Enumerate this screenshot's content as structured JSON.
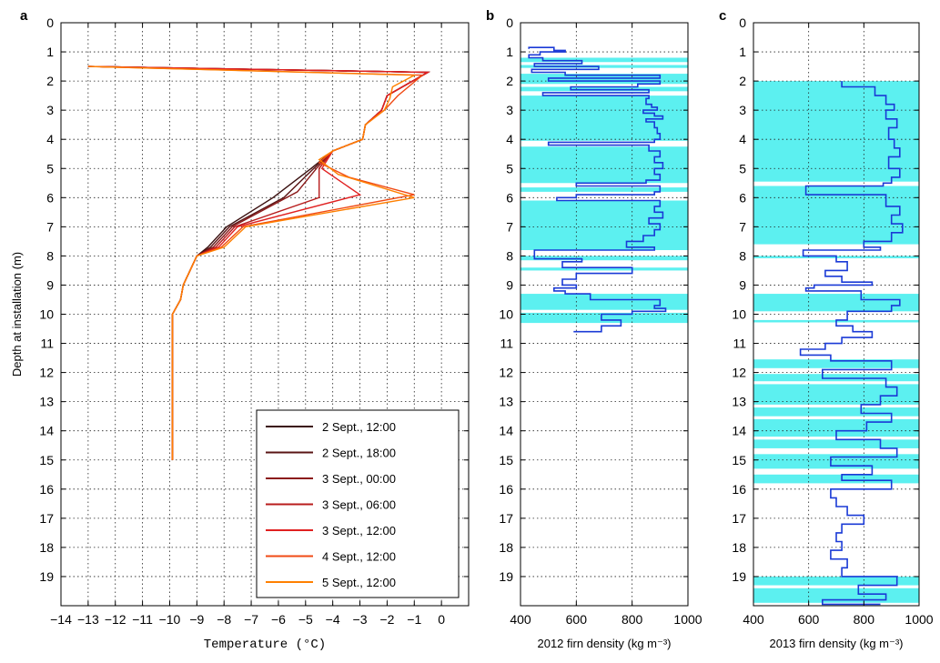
{
  "chart_data": [
    {
      "panel": "a",
      "type": "line",
      "xlabel": "Temperature (°C)",
      "ylabel": "Depth at installation (m)",
      "xlim": [
        -14,
        1
      ],
      "ylim": [
        0,
        20
      ],
      "y_reversed": true,
      "xticks": [
        -14,
        -13,
        -12,
        -11,
        -10,
        -9,
        -8,
        -7,
        -6,
        -5,
        -4,
        -3,
        -2,
        -1,
        0
      ],
      "yticks": [
        0,
        1,
        2,
        3,
        4,
        5,
        6,
        7,
        8,
        9,
        10,
        11,
        12,
        13,
        14,
        15,
        16,
        17,
        18,
        19
      ],
      "grid": true,
      "legend_position": "bottom-right",
      "series": [
        {
          "name": "2 Sept., 12:00",
          "color": "#3a1010",
          "points": [
            [
              -13.0,
              1.5
            ],
            [
              -0.5,
              1.7
            ],
            [
              -2.0,
              2.5
            ],
            [
              -2.2,
              3.0
            ],
            [
              -2.8,
              3.5
            ],
            [
              -2.9,
              4.0
            ],
            [
              -4.0,
              4.4
            ],
            [
              -4.8,
              5.0
            ],
            [
              -6.2,
              6.0
            ],
            [
              -7.9,
              7.0
            ],
            [
              -8.6,
              7.7
            ],
            [
              -9.0,
              8.0
            ],
            [
              -9.5,
              9.0
            ],
            [
              -9.6,
              9.5
            ],
            [
              -9.9,
              10.0
            ],
            [
              -9.9,
              11.0
            ],
            [
              -9.9,
              15.0
            ]
          ]
        },
        {
          "name": "2 Sept., 18:00",
          "color": "#5a1414",
          "points": [
            [
              -13.0,
              1.5
            ],
            [
              -0.5,
              1.7
            ],
            [
              -2.0,
              2.5
            ],
            [
              -2.2,
              3.0
            ],
            [
              -2.8,
              3.5
            ],
            [
              -2.9,
              4.0
            ],
            [
              -4.0,
              4.4
            ],
            [
              -4.7,
              5.0
            ],
            [
              -5.8,
              6.0
            ],
            [
              -7.8,
              7.0
            ],
            [
              -8.5,
              7.7
            ],
            [
              -9.0,
              8.0
            ],
            [
              -9.5,
              9.0
            ],
            [
              -9.6,
              9.5
            ],
            [
              -9.9,
              10.0
            ],
            [
              -9.9,
              11.0
            ],
            [
              -9.9,
              15.0
            ]
          ]
        },
        {
          "name": "3 Sept., 00:00",
          "color": "#8b1a1a",
          "points": [
            [
              -13.0,
              1.5
            ],
            [
              -0.5,
              1.7
            ],
            [
              -2.0,
              2.5
            ],
            [
              -2.2,
              3.0
            ],
            [
              -2.8,
              3.5
            ],
            [
              -2.9,
              4.0
            ],
            [
              -4.0,
              4.4
            ],
            [
              -4.6,
              5.0
            ],
            [
              -5.3,
              5.8
            ],
            [
              -7.7,
              7.0
            ],
            [
              -8.4,
              7.7
            ],
            [
              -9.0,
              8.0
            ],
            [
              -9.5,
              9.0
            ],
            [
              -9.6,
              9.5
            ],
            [
              -9.9,
              10.0
            ],
            [
              -9.9,
              11.0
            ],
            [
              -9.9,
              15.0
            ]
          ]
        },
        {
          "name": "3 Sept., 06:00",
          "color": "#b81c1c",
          "points": [
            [
              -13.0,
              1.5
            ],
            [
              -0.5,
              1.7
            ],
            [
              -2.0,
              2.5
            ],
            [
              -2.2,
              3.0
            ],
            [
              -2.8,
              3.5
            ],
            [
              -2.9,
              4.0
            ],
            [
              -4.0,
              4.4
            ],
            [
              -4.5,
              5.0
            ],
            [
              -4.5,
              6.0
            ],
            [
              -7.6,
              7.0
            ],
            [
              -8.3,
              7.7
            ],
            [
              -9.0,
              8.0
            ],
            [
              -9.5,
              9.0
            ],
            [
              -9.6,
              9.5
            ],
            [
              -9.9,
              10.0
            ],
            [
              -9.9,
              11.0
            ],
            [
              -9.9,
              15.0
            ]
          ]
        },
        {
          "name": "3 Sept., 12:00",
          "color": "#e02020",
          "points": [
            [
              -13.0,
              1.5
            ],
            [
              -0.5,
              1.7
            ],
            [
              -2.0,
              2.5
            ],
            [
              -2.2,
              3.0
            ],
            [
              -2.8,
              3.5
            ],
            [
              -2.9,
              4.0
            ],
            [
              -4.0,
              4.4
            ],
            [
              -4.4,
              5.0
            ],
            [
              -3.0,
              5.9
            ],
            [
              -7.5,
              7.0
            ],
            [
              -8.2,
              7.7
            ],
            [
              -9.0,
              8.0
            ],
            [
              -9.5,
              9.0
            ],
            [
              -9.6,
              9.5
            ],
            [
              -9.9,
              10.0
            ],
            [
              -9.9,
              11.0
            ],
            [
              -9.9,
              15.0
            ]
          ]
        },
        {
          "name": "4 Sept., 12:00",
          "color": "#f04a14",
          "points": [
            [
              -13.0,
              1.5
            ],
            [
              -0.7,
              1.8
            ],
            [
              -1.6,
              2.5
            ],
            [
              -2.1,
              3.0
            ],
            [
              -2.8,
              3.5
            ],
            [
              -2.9,
              4.0
            ],
            [
              -4.0,
              4.4
            ],
            [
              -4.5,
              4.8
            ],
            [
              -3.4,
              5.3
            ],
            [
              -1.0,
              5.9
            ],
            [
              -7.3,
              7.0
            ],
            [
              -8.1,
              7.7
            ],
            [
              -9.0,
              8.0
            ],
            [
              -9.5,
              9.0
            ],
            [
              -9.6,
              9.5
            ],
            [
              -9.9,
              10.0
            ],
            [
              -9.9,
              11.0
            ],
            [
              -9.9,
              15.0
            ]
          ]
        },
        {
          "name": "5 Sept., 12:00",
          "color": "#ff8000",
          "points": [
            [
              -13.0,
              1.5
            ],
            [
              -1.0,
              1.8
            ],
            [
              -1.8,
              2.2
            ],
            [
              -1.9,
              2.6
            ],
            [
              -2.1,
              3.0
            ],
            [
              -2.8,
              3.5
            ],
            [
              -2.9,
              4.0
            ],
            [
              -4.0,
              4.4
            ],
            [
              -4.5,
              4.7
            ],
            [
              -3.8,
              5.2
            ],
            [
              -1.0,
              6.0
            ],
            [
              -7.2,
              7.0
            ],
            [
              -8.0,
              7.7
            ],
            [
              -9.0,
              8.0
            ],
            [
              -9.5,
              9.0
            ],
            [
              -9.6,
              9.5
            ],
            [
              -9.9,
              10.0
            ],
            [
              -9.9,
              11.0
            ],
            [
              -9.9,
              15.0
            ]
          ]
        }
      ]
    },
    {
      "panel": "b",
      "type": "line",
      "xlabel": "2012 firn density (kg m⁻³)",
      "xlim": [
        400,
        1000
      ],
      "ylim": [
        0,
        20
      ],
      "y_reversed": true,
      "xticks": [
        400,
        600,
        800,
        1000
      ],
      "yticks": [
        0,
        1,
        2,
        3,
        4,
        5,
        6,
        7,
        8,
        9,
        10,
        11,
        12,
        13,
        14,
        15,
        16,
        17,
        18,
        19
      ],
      "grid": true,
      "line_color": "#1a3ad6",
      "shade_color": "#5cf0f0",
      "shaded_bands_depth": [
        [
          1.2,
          1.35
        ],
        [
          1.45,
          1.55
        ],
        [
          1.75,
          2.1
        ],
        [
          2.2,
          2.35
        ],
        [
          2.5,
          4.05
        ],
        [
          4.25,
          5.5
        ],
        [
          5.65,
          5.8
        ],
        [
          6.1,
          7.8
        ],
        [
          8.0,
          8.15
        ],
        [
          8.4,
          8.5
        ],
        [
          9.3,
          9.85
        ],
        [
          9.95,
          10.3
        ]
      ],
      "profile": [
        [
          430,
          0.9
        ],
        [
          520,
          0.85
        ],
        [
          560,
          0.95
        ],
        [
          470,
          1.0
        ],
        [
          430,
          1.1
        ],
        [
          480,
          1.2
        ],
        [
          620,
          1.3
        ],
        [
          450,
          1.4
        ],
        [
          680,
          1.5
        ],
        [
          440,
          1.6
        ],
        [
          560,
          1.7
        ],
        [
          900,
          1.8
        ],
        [
          500,
          1.9
        ],
        [
          900,
          2.0
        ],
        [
          820,
          2.1
        ],
        [
          580,
          2.2
        ],
        [
          860,
          2.3
        ],
        [
          480,
          2.4
        ],
        [
          860,
          2.5
        ],
        [
          850,
          2.6
        ],
        [
          870,
          2.8
        ],
        [
          890,
          2.9
        ],
        [
          840,
          3.0
        ],
        [
          880,
          3.1
        ],
        [
          910,
          3.2
        ],
        [
          850,
          3.3
        ],
        [
          880,
          3.4
        ],
        [
          890,
          3.6
        ],
        [
          900,
          3.8
        ],
        [
          880,
          4.0
        ],
        [
          500,
          4.1
        ],
        [
          860,
          4.2
        ],
        [
          900,
          4.4
        ],
        [
          880,
          4.6
        ],
        [
          910,
          4.8
        ],
        [
          880,
          5.0
        ],
        [
          900,
          5.2
        ],
        [
          850,
          5.4
        ],
        [
          600,
          5.5
        ],
        [
          900,
          5.6
        ],
        [
          880,
          5.8
        ],
        [
          600,
          5.9
        ],
        [
          530,
          6.0
        ],
        [
          900,
          6.1
        ],
        [
          880,
          6.3
        ],
        [
          910,
          6.5
        ],
        [
          860,
          6.7
        ],
        [
          900,
          6.9
        ],
        [
          880,
          7.1
        ],
        [
          840,
          7.3
        ],
        [
          780,
          7.5
        ],
        [
          880,
          7.7
        ],
        [
          450,
          7.8
        ],
        [
          450,
          8.0
        ],
        [
          620,
          8.1
        ],
        [
          550,
          8.2
        ],
        [
          800,
          8.4
        ],
        [
          600,
          8.6
        ],
        [
          550,
          8.8
        ],
        [
          600,
          9.0
        ],
        [
          520,
          9.1
        ],
        [
          560,
          9.2
        ],
        [
          650,
          9.3
        ],
        [
          900,
          9.5
        ],
        [
          880,
          9.7
        ],
        [
          920,
          9.8
        ],
        [
          800,
          9.9
        ],
        [
          690,
          10.0
        ],
        [
          760,
          10.2
        ],
        [
          690,
          10.4
        ],
        [
          590,
          10.6
        ]
      ]
    },
    {
      "panel": "c",
      "type": "line",
      "xlabel": "2013 firn density (kg m⁻³)",
      "xlim": [
        400,
        1000
      ],
      "ylim": [
        0,
        20
      ],
      "y_reversed": true,
      "xticks": [
        400,
        600,
        800,
        1000
      ],
      "yticks": [
        0,
        1,
        2,
        3,
        4,
        5,
        6,
        7,
        8,
        9,
        10,
        11,
        12,
        13,
        14,
        15,
        16,
        17,
        18,
        19
      ],
      "grid": true,
      "line_color": "#1a3ad6",
      "shade_color": "#5cf0f0",
      "shaded_bands_depth": [
        [
          2.0,
          5.45
        ],
        [
          5.6,
          7.6
        ],
        [
          8.0,
          8.08
        ],
        [
          9.3,
          9.9
        ],
        [
          10.2,
          10.28
        ],
        [
          11.55,
          11.85
        ],
        [
          12.05,
          12.3
        ],
        [
          12.4,
          13.1
        ],
        [
          13.2,
          13.5
        ],
        [
          13.6,
          14.2
        ],
        [
          14.3,
          14.6
        ],
        [
          14.8,
          15.3
        ],
        [
          15.5,
          15.8
        ],
        [
          19.0,
          19.3
        ],
        [
          19.4,
          19.9
        ]
      ],
      "profile": [
        [
          720,
          2.0
        ],
        [
          840,
          2.2
        ],
        [
          880,
          2.5
        ],
        [
          910,
          2.8
        ],
        [
          880,
          3.0
        ],
        [
          920,
          3.3
        ],
        [
          890,
          3.6
        ],
        [
          910,
          4.0
        ],
        [
          930,
          4.3
        ],
        [
          890,
          4.6
        ],
        [
          930,
          5.0
        ],
        [
          900,
          5.3
        ],
        [
          870,
          5.5
        ],
        [
          590,
          5.6
        ],
        [
          590,
          5.8
        ],
        [
          880,
          5.9
        ],
        [
          930,
          6.3
        ],
        [
          900,
          6.6
        ],
        [
          940,
          6.9
        ],
        [
          900,
          7.2
        ],
        [
          800,
          7.5
        ],
        [
          860,
          7.7
        ],
        [
          580,
          7.8
        ],
        [
          700,
          8.0
        ],
        [
          740,
          8.2
        ],
        [
          660,
          8.5
        ],
        [
          720,
          8.7
        ],
        [
          830,
          8.9
        ],
        [
          620,
          9.0
        ],
        [
          590,
          9.1
        ],
        [
          790,
          9.2
        ],
        [
          930,
          9.5
        ],
        [
          900,
          9.7
        ],
        [
          740,
          9.9
        ],
        [
          700,
          10.2
        ],
        [
          760,
          10.4
        ],
        [
          830,
          10.6
        ],
        [
          720,
          10.8
        ],
        [
          660,
          11.0
        ],
        [
          570,
          11.2
        ],
        [
          680,
          11.4
        ],
        [
          900,
          11.6
        ],
        [
          650,
          11.9
        ],
        [
          880,
          12.2
        ],
        [
          920,
          12.5
        ],
        [
          860,
          12.8
        ],
        [
          790,
          13.1
        ],
        [
          900,
          13.4
        ],
        [
          810,
          13.7
        ],
        [
          700,
          14.0
        ],
        [
          860,
          14.3
        ],
        [
          920,
          14.6
        ],
        [
          680,
          14.9
        ],
        [
          830,
          15.2
        ],
        [
          720,
          15.5
        ],
        [
          900,
          15.7
        ],
        [
          680,
          16.0
        ],
        [
          700,
          16.3
        ],
        [
          740,
          16.6
        ],
        [
          800,
          16.9
        ],
        [
          720,
          17.2
        ],
        [
          700,
          17.5
        ],
        [
          720,
          17.8
        ],
        [
          680,
          18.1
        ],
        [
          740,
          18.4
        ],
        [
          720,
          18.7
        ],
        [
          920,
          19.0
        ],
        [
          780,
          19.3
        ],
        [
          880,
          19.6
        ],
        [
          650,
          19.8
        ],
        [
          860,
          19.95
        ]
      ]
    }
  ]
}
